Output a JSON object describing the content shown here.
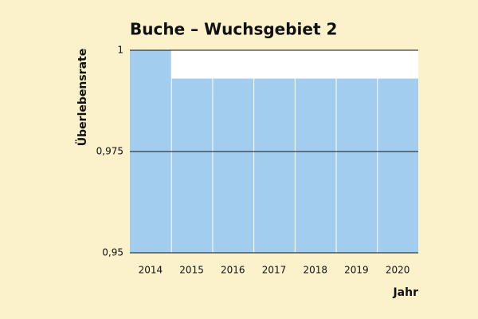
{
  "chart_data": {
    "type": "bar",
    "title": "Buche – Wuchsgebiet 2",
    "y_label": "Überlebensrate",
    "x_label": "Jahr",
    "categories": [
      "2014",
      "2015",
      "2016",
      "2017",
      "2018",
      "2019",
      "2020"
    ],
    "values": [
      1,
      0.993,
      0.993,
      0.993,
      0.993,
      0.993,
      0.993
    ],
    "color": "#a3cdee",
    "ylim": [
      0.95,
      1
    ],
    "yticks": [
      {
        "value": 0.95,
        "label": "0,95"
      },
      {
        "value": 0.975,
        "label": "0,975"
      },
      1
    ],
    "grid": true
  }
}
